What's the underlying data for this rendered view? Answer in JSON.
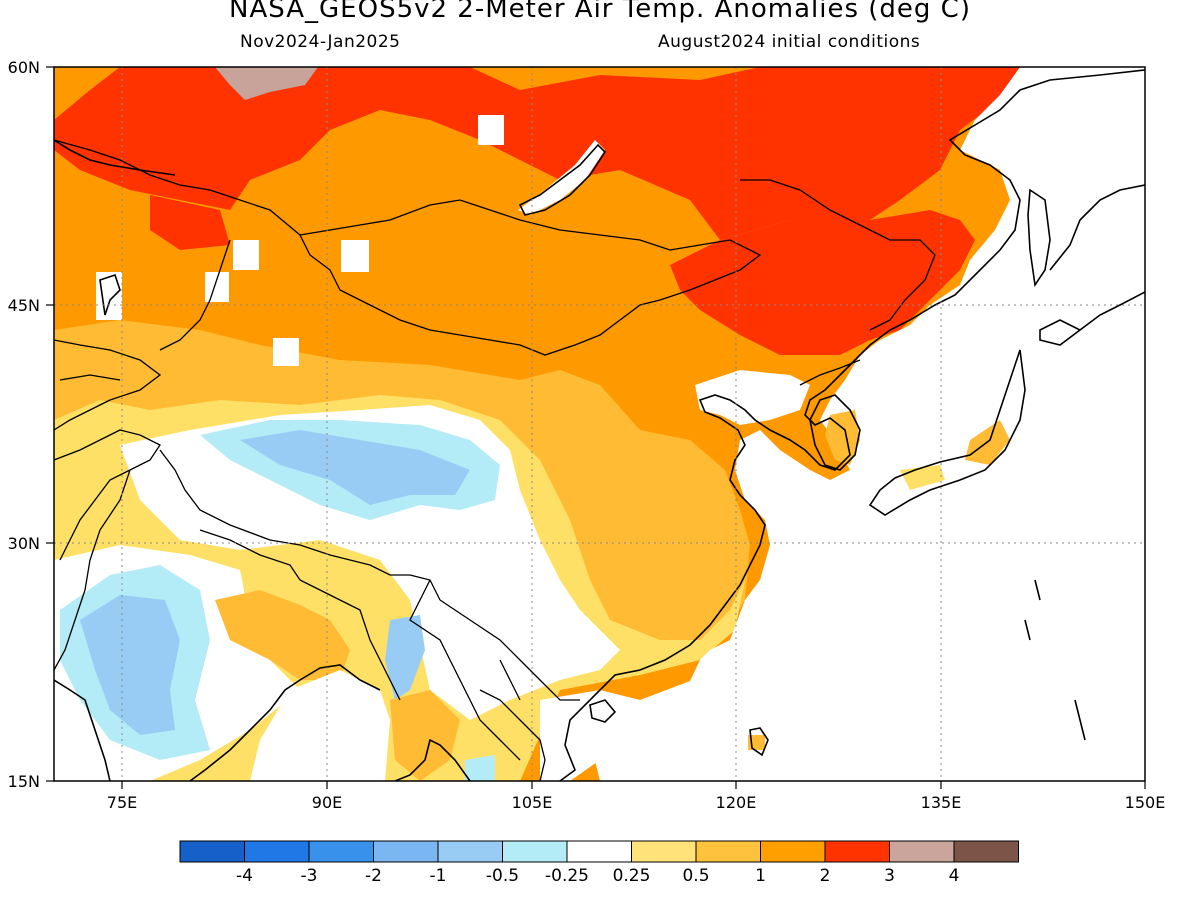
{
  "header": {
    "title": "NASA_GEOS5v2 2-Meter Air Temp. Anomalies (deg C)",
    "period": "Nov2024-Jan2025",
    "init": "August2024 initial conditions"
  },
  "map": {
    "lon_range": [
      70,
      150
    ],
    "lat_range": [
      15,
      60
    ],
    "lat_ticks": [
      {
        "value": 60,
        "label": "60N"
      },
      {
        "value": 45,
        "label": "45N"
      },
      {
        "value": 30,
        "label": "30N"
      },
      {
        "value": 15,
        "label": "15N"
      }
    ],
    "lon_ticks": [
      {
        "value": 75,
        "label": "75E"
      },
      {
        "value": 90,
        "label": "90E"
      },
      {
        "value": 105,
        "label": "105E"
      },
      {
        "value": 120,
        "label": "120E"
      },
      {
        "value": 135,
        "label": "135E"
      },
      {
        "value": 150,
        "label": "150E"
      }
    ],
    "gridlines": "dotted",
    "fill_colors": {
      "strong_warm": "#ff3300",
      "warm_2": "#ff9900",
      "warm_1": "#ffbb33",
      "warm_05": "#ffe066",
      "neutral": "#ffffff",
      "cool_025": "#b3ecf7",
      "cool_05": "#99ccf5",
      "cool_1": "#77b4f0",
      "very_warm": "#c8a39a"
    }
  },
  "colorbar": {
    "colors": [
      "#1560c9",
      "#1f78e6",
      "#3891ea",
      "#7ab6f2",
      "#99ccf5",
      "#b3ecf7",
      "#ffffff",
      "#ffe27a",
      "#ffc23c",
      "#ff9f00",
      "#ff3300",
      "#c9a59b",
      "#7d5548"
    ],
    "labels": [
      "-4",
      "-3",
      "-2",
      "-1",
      "-0.5",
      "-0.25",
      "0.25",
      "0.5",
      "1",
      "2",
      "3",
      "4"
    ]
  }
}
